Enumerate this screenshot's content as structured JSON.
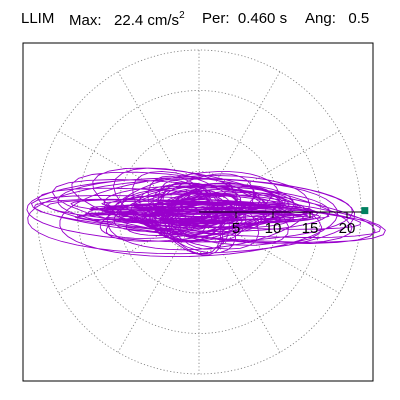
{
  "header": {
    "station": "LLIM",
    "max_label": "Max:",
    "max_value": "22.4 cm/s",
    "max_exp": "2",
    "per_label": "Per:",
    "per_value": "0.460 s",
    "ang_label": "Ang:",
    "ang_value": "0.5"
  },
  "chart_data": {
    "type": "polar",
    "title": "",
    "radial_ticks": [
      "5",
      "10",
      "15",
      "20"
    ],
    "radial_tick_values": [
      5,
      10,
      15,
      20
    ],
    "grid": "dotted concentric circles and radial lines every 30 degrees",
    "r_max": 22.4,
    "max_point": {
      "r": 22.4,
      "angle_deg": 0.5
    },
    "series": [
      {
        "color": "#9900cc",
        "note_semantic": "horizontal particle-motion trajectory, dominantly east-west"
      }
    ],
    "marker_color": "#008060",
    "line_color": "#9900cc"
  }
}
